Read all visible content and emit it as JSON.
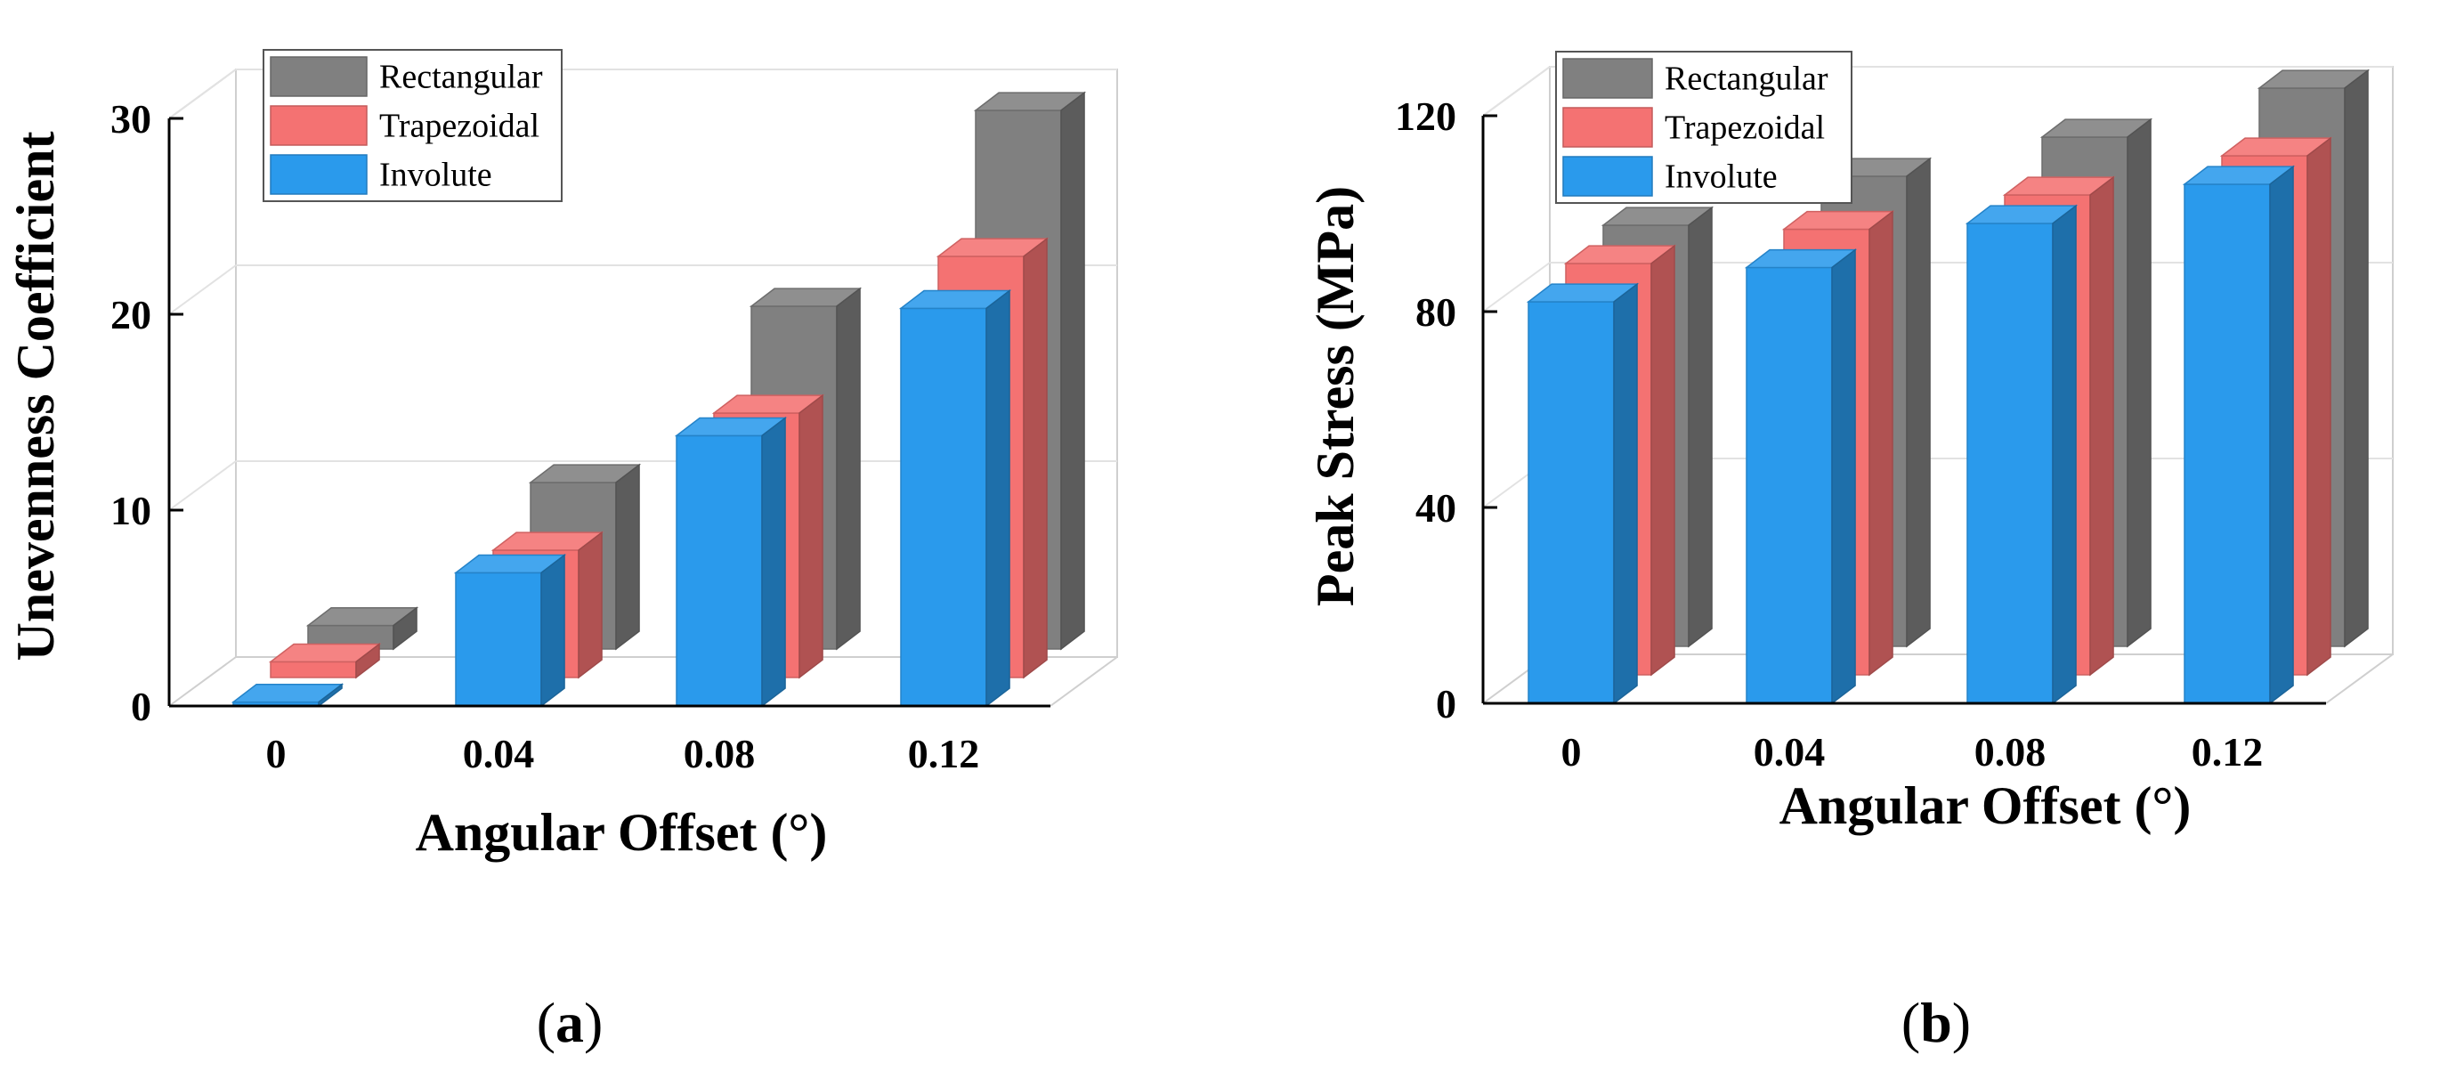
{
  "chart_data": [
    {
      "type": "bar",
      "style": "3d-grouped",
      "panel_label": "(a)",
      "categories": [
        "0",
        "0.04",
        "0.08",
        "0.12"
      ],
      "series": [
        {
          "name": "Rectangular",
          "values": [
            1.2,
            8.5,
            17.5,
            27.5
          ],
          "color": "#808080"
        },
        {
          "name": "Trapezoidal",
          "values": [
            0.8,
            6.5,
            13.5,
            21.5
          ],
          "color": "#F47272"
        },
        {
          "name": "Involute",
          "values": [
            0.2,
            6.8,
            13.8,
            20.3
          ],
          "color": "#2A9AEC"
        }
      ],
      "xlabel": "Angular Offset (°)",
      "ylabel": "Unevenness Coefficient",
      "ylim": [
        0,
        30
      ],
      "yticks": [
        0,
        10,
        20,
        30
      ],
      "grid": true,
      "legend": "top-left"
    },
    {
      "type": "bar",
      "style": "3d-grouped",
      "panel_label": "(b)",
      "categories": [
        "0",
        "0.04",
        "0.08",
        "0.12"
      ],
      "series": [
        {
          "name": "Rectangular",
          "values": [
            86,
            96,
            104,
            114
          ],
          "color": "#808080"
        },
        {
          "name": "Trapezoidal",
          "values": [
            84,
            91,
            98,
            106
          ],
          "color": "#F47272"
        },
        {
          "name": "Involute",
          "values": [
            82,
            89,
            98,
            106
          ],
          "color": "#2A9AEC"
        }
      ],
      "xlabel": "Angular Offset (°)",
      "ylabel": "Peak Stress (MPa)",
      "ylim": [
        0,
        120
      ],
      "yticks": [
        0,
        40,
        80,
        120
      ],
      "grid": true,
      "legend": "top-left"
    }
  ]
}
